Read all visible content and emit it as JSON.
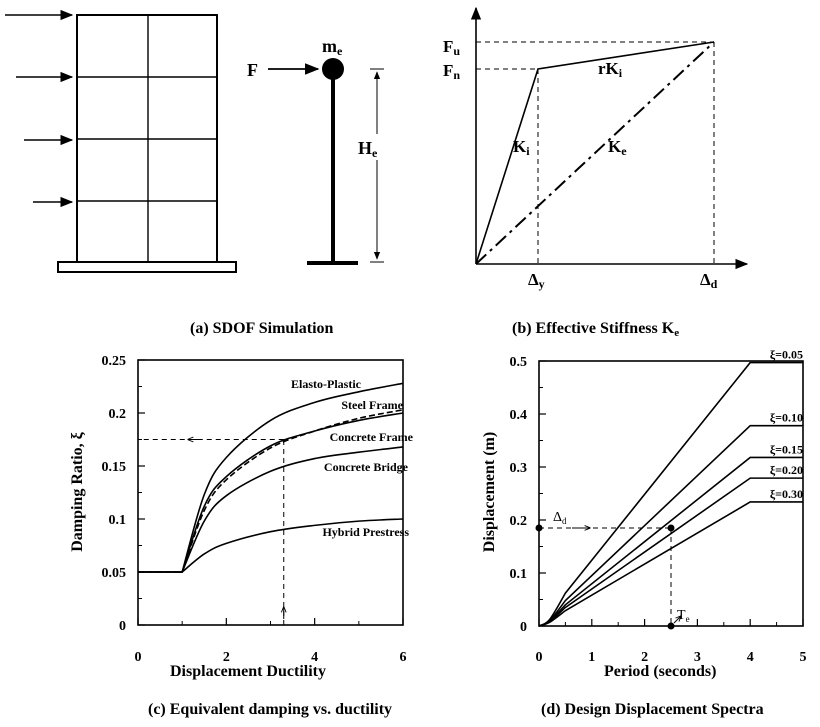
{
  "panel_a": {
    "caption": "(a) SDOF Simulation",
    "force": "F",
    "mass_main": "m",
    "mass_sub": "e",
    "height_main": "H",
    "height_sub": "e"
  },
  "panel_b": {
    "caption_main": "(b) Effective Stiffness K",
    "caption_sub": "e",
    "fu_main": "F",
    "fu_sub": "u",
    "fn_main": "F",
    "fn_sub": "n",
    "rki_main": "rK",
    "rki_sub": "i",
    "ki_main": "K",
    "ki_sub": "i",
    "ke_main": "K",
    "ke_sub": "e",
    "dy_main": "Δ",
    "dy_sub": "y",
    "dd_main": "Δ",
    "dd_sub": "d"
  },
  "panel_c": {
    "caption": "(c) Equivalent damping vs. ductility",
    "chart_data": {
      "type": "line",
      "xlabel": "Displacement Ductility",
      "ylabel": "Damping Ratio, ξ",
      "xlim": [
        0,
        6
      ],
      "ylim": [
        0,
        0.25
      ],
      "xticks": [
        "0",
        "2",
        "4",
        "6"
      ],
      "yticks": [
        "0",
        "0.05",
        "0.1",
        "0.15",
        "0.2",
        "0.25"
      ],
      "series": [
        {
          "name": "Elasto-Plastic",
          "x": [
            0,
            1,
            1.5,
            2,
            3,
            4,
            5,
            6
          ],
          "y": [
            0.05,
            0.05,
            0.123,
            0.158,
            0.193,
            0.21,
            0.22,
            0.228
          ]
        },
        {
          "name": "Steel Frame",
          "x": [
            0,
            1,
            1.5,
            2,
            3,
            4,
            5,
            6
          ],
          "y": [
            0.05,
            0.05,
            0.112,
            0.14,
            0.169,
            0.183,
            0.193,
            0.2
          ]
        },
        {
          "name": "Concrete Frame",
          "x": [
            0,
            1,
            1.5,
            2,
            3,
            4,
            5,
            6
          ],
          "y": [
            0.05,
            0.05,
            0.108,
            0.137,
            0.167,
            0.183,
            0.195,
            0.203
          ],
          "dashed": true
        },
        {
          "name": "Concrete Bridge",
          "x": [
            0,
            1,
            1.5,
            2,
            3,
            4,
            5,
            6
          ],
          "y": [
            0.05,
            0.05,
            0.098,
            0.122,
            0.145,
            0.157,
            0.163,
            0.168
          ]
        },
        {
          "name": "Hybrid Prestress",
          "x": [
            0,
            1,
            1.5,
            2,
            3,
            4,
            5,
            6
          ],
          "y": [
            0.05,
            0.05,
            0.067,
            0.077,
            0.088,
            0.094,
            0.098,
            0.1
          ]
        }
      ]
    }
  },
  "panel_d": {
    "caption": "(d) Design Displacement  Spectra",
    "td_main": "T",
    "td_sub": "e",
    "dd_main": "Δ",
    "dd_sub": "d",
    "chart_data": {
      "type": "line",
      "xlabel": "Period (seconds)",
      "ylabel": "Displacement (m)",
      "xlim": [
        0,
        5
      ],
      "ylim": [
        0,
        0.5
      ],
      "xticks": [
        "0",
        "1",
        "2",
        "3",
        "4",
        "5"
      ],
      "yticks": [
        "0",
        "0.1",
        "0.2",
        "0.3",
        "0.4",
        "0.5"
      ],
      "series": [
        {
          "name": "ξ=0.05",
          "x": [
            0,
            0.2,
            0.5,
            4,
            5
          ],
          "y": [
            0,
            0.012,
            0.062,
            0.497,
            0.497
          ]
        },
        {
          "name": "ξ=0.10",
          "x": [
            0,
            0.2,
            0.5,
            4,
            5
          ],
          "y": [
            0,
            0.01,
            0.048,
            0.378,
            0.378
          ]
        },
        {
          "name": "ξ=0.15",
          "x": [
            0,
            0.2,
            0.5,
            4,
            5
          ],
          "y": [
            0,
            0.009,
            0.04,
            0.318,
            0.318
          ]
        },
        {
          "name": "ξ=0.20",
          "x": [
            0,
            0.2,
            0.5,
            4,
            5
          ],
          "y": [
            0,
            0.008,
            0.035,
            0.279,
            0.279
          ]
        },
        {
          "name": "ξ=0.30",
          "x": [
            0,
            0.2,
            0.5,
            4,
            5
          ],
          "y": [
            0,
            0.007,
            0.029,
            0.234,
            0.234
          ]
        }
      ]
    }
  }
}
